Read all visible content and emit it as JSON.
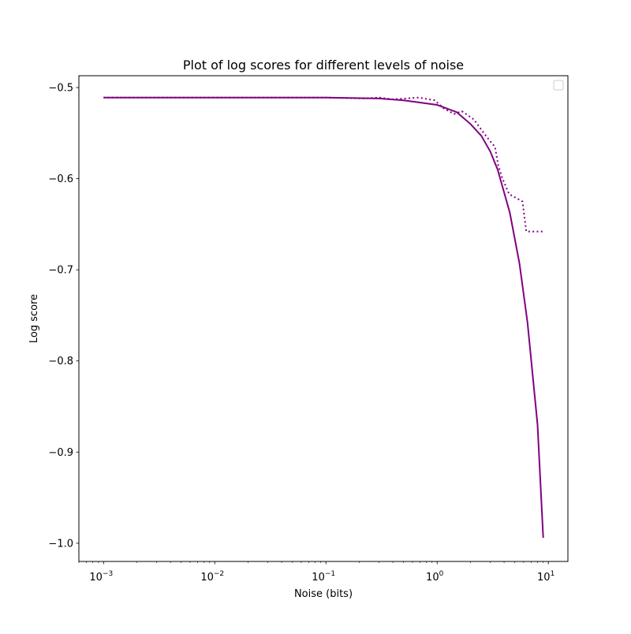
{
  "chart_data": {
    "type": "line",
    "title": "Plot of log scores for different levels of noise",
    "xlabel": "Noise (bits)",
    "ylabel": "Log score",
    "xscale": "log",
    "xlim": [
      0.0006,
      15
    ],
    "ylim": [
      -1.02,
      -0.487
    ],
    "x_ticks": [
      {
        "value": 0.001,
        "base": "10",
        "exp": "−3"
      },
      {
        "value": 0.01,
        "base": "10",
        "exp": "−2"
      },
      {
        "value": 0.1,
        "base": "10",
        "exp": "−1"
      },
      {
        "value": 1,
        "base": "10",
        "exp": "0"
      },
      {
        "value": 10,
        "base": "10",
        "exp": "1"
      }
    ],
    "y_ticks": [
      {
        "value": -0.5,
        "label": "−0.5"
      },
      {
        "value": -0.6,
        "label": "−0.6"
      },
      {
        "value": -0.7,
        "label": "−0.7"
      },
      {
        "value": -0.8,
        "label": "−0.8"
      },
      {
        "value": -0.9,
        "label": "−0.9"
      },
      {
        "value": -1.0,
        "label": "−1.0"
      }
    ],
    "grid": false,
    "legend": {
      "placement": "top-right",
      "entries": []
    },
    "series": [
      {
        "style": "solid",
        "color": "#800080",
        "x": [
          0.001,
          0.01,
          0.1,
          0.3,
          0.5,
          1,
          1.5,
          2,
          2.5,
          3,
          3.5,
          4.5,
          5.5,
          6.5,
          8,
          9
        ],
        "y": [
          -0.511,
          -0.511,
          -0.511,
          -0.512,
          -0.514,
          -0.519,
          -0.527,
          -0.54,
          -0.553,
          -0.57,
          -0.59,
          -0.637,
          -0.693,
          -0.758,
          -0.87,
          -0.994
        ]
      },
      {
        "style": "dotted",
        "color": "#800080",
        "x": [
          0.001,
          0.01,
          0.1,
          0.22,
          0.3,
          0.4,
          0.685,
          0.95,
          1.15,
          1.42,
          1.67,
          2.14,
          2.6,
          2.96,
          3.31,
          3.54,
          3.84,
          4.44,
          5.85,
          6.34,
          9.22
        ],
        "y": [
          -0.511,
          -0.511,
          -0.511,
          -0.512,
          -0.511,
          -0.513,
          -0.511,
          -0.514,
          -0.523,
          -0.529,
          -0.526,
          -0.535,
          -0.549,
          -0.558,
          -0.565,
          -0.585,
          -0.599,
          -0.617,
          -0.625,
          -0.658,
          -0.658
        ]
      }
    ]
  }
}
